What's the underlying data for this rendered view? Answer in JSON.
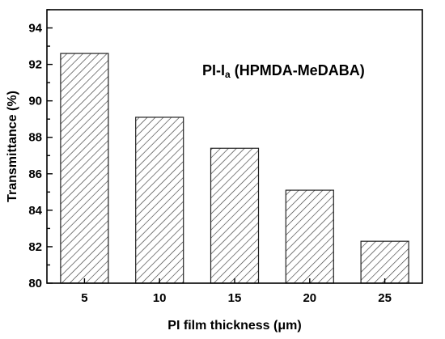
{
  "chart_data": {
    "type": "bar",
    "categories": [
      "5",
      "10",
      "15",
      "20",
      "25"
    ],
    "values": [
      92.6,
      89.1,
      87.4,
      85.1,
      82.3
    ],
    "title": "",
    "annotation": {
      "main": "PI-I",
      "subscript": "a",
      "rest": " (HPMDA-MeDABA)"
    },
    "xlabel": "PI film thickness (μm)",
    "ylabel": "Transmittance (%)",
    "ylim": [
      80,
      95
    ],
    "yticks": [
      80,
      82,
      84,
      86,
      88,
      90,
      92,
      94
    ],
    "bar_fill": "hatched",
    "bar_color": "#ffffff",
    "stroke_color": "#222222",
    "grid": false,
    "legend": "none"
  }
}
